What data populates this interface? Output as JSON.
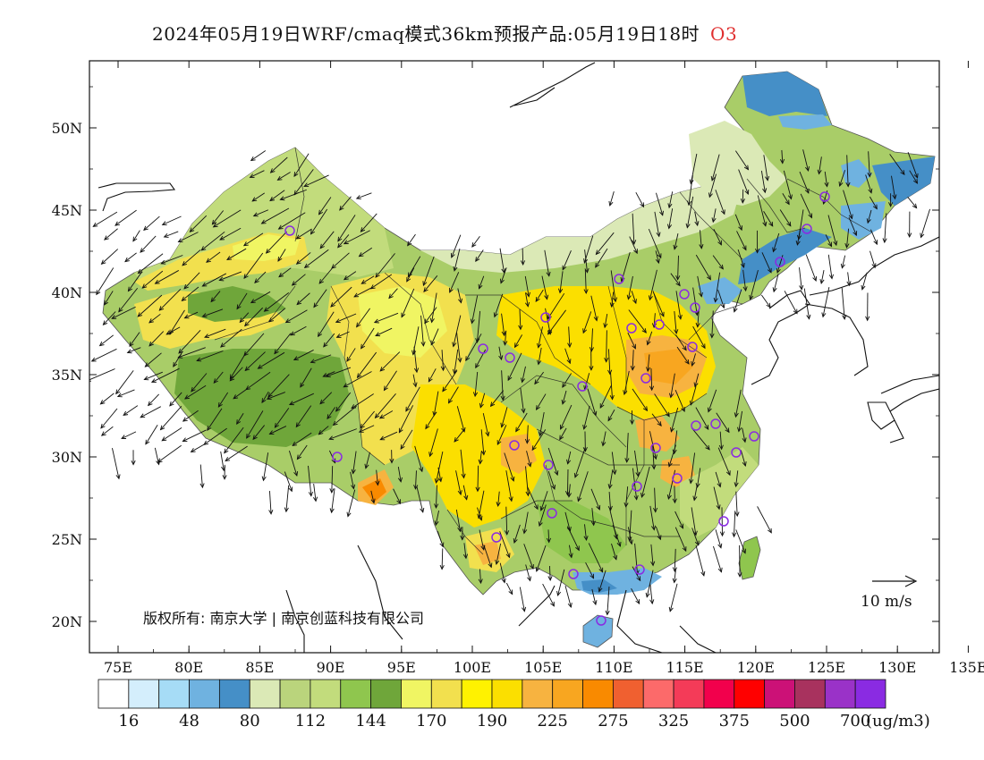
{
  "title": {
    "text": "2024年05月19日WRF/cmaq模式36km预报产品:05月19日18时",
    "species": "O3"
  },
  "map": {
    "lon_ticks": [
      "75E",
      "80E",
      "85E",
      "90E",
      "95E",
      "100E",
      "105E",
      "110E",
      "115E",
      "120E",
      "125E",
      "130E",
      "135E"
    ],
    "lat_ticks": [
      "50N",
      "45N",
      "40N",
      "35N",
      "30N",
      "25N",
      "20N"
    ],
    "copyright": "版权所有: 南京大学 | 南京创蓝科技有限公司",
    "wind_scale_label": "10 m/s"
  },
  "colorbar": {
    "colors": [
      "#ffffff",
      "#d4eefc",
      "#a6dcf6",
      "#6fb2e0",
      "#458fc7",
      "#dbe9b6",
      "#bad47c",
      "#c2dc7c",
      "#8fc64e",
      "#6fa63a",
      "#f0f563",
      "#f2e04e",
      "#fff200",
      "#fbdf00",
      "#f7b340",
      "#f8a620",
      "#f98a00",
      "#f06030",
      "#fc6a6a",
      "#f43b58",
      "#f2004c",
      "#ff0000",
      "#cc1177",
      "#a8325e",
      "#9a32c8",
      "#8a2be2"
    ],
    "labels": [
      "16",
      "48",
      "80",
      "112",
      "144",
      "170",
      "190",
      "225",
      "275",
      "325",
      "375",
      "500",
      "700"
    ],
    "unit": "(ug/m3)"
  },
  "stations_icon": "circle-marker-icon",
  "wind_icon": "wind-arrow-icon"
}
